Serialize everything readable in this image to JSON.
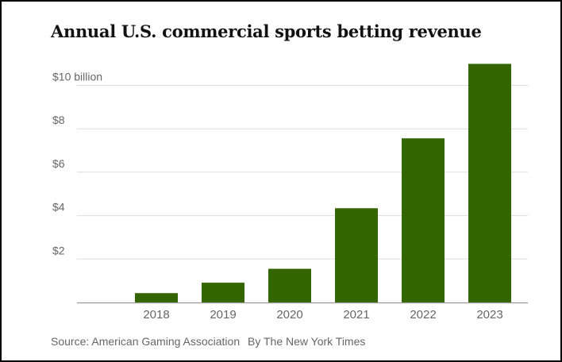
{
  "title": "Annual U.S. commercial sports betting revenue",
  "source": "Source: American Gaming Association",
  "byline": "By The New York Times",
  "colors": {
    "bar": "#336600",
    "grid": "#dddddd",
    "axis": "#999999",
    "tick_text": "#666666",
    "title": "#121212"
  },
  "chart_data": {
    "type": "bar",
    "title": "Annual U.S. commercial sports betting revenue",
    "xlabel": "",
    "ylabel": "",
    "categories": [
      "2018",
      "2019",
      "2020",
      "2021",
      "2022",
      "2023"
    ],
    "values": [
      0.43,
      0.91,
      1.55,
      4.34,
      7.56,
      10.99
    ],
    "ylim": [
      0,
      12
    ],
    "y_ticks": [
      2,
      4,
      6,
      8,
      10
    ],
    "y_tick_labels": [
      "$2",
      "$4",
      "$6",
      "$8",
      "$10 billion"
    ],
    "grid": true,
    "legend": "none",
    "units": "billion U.S. dollars"
  }
}
